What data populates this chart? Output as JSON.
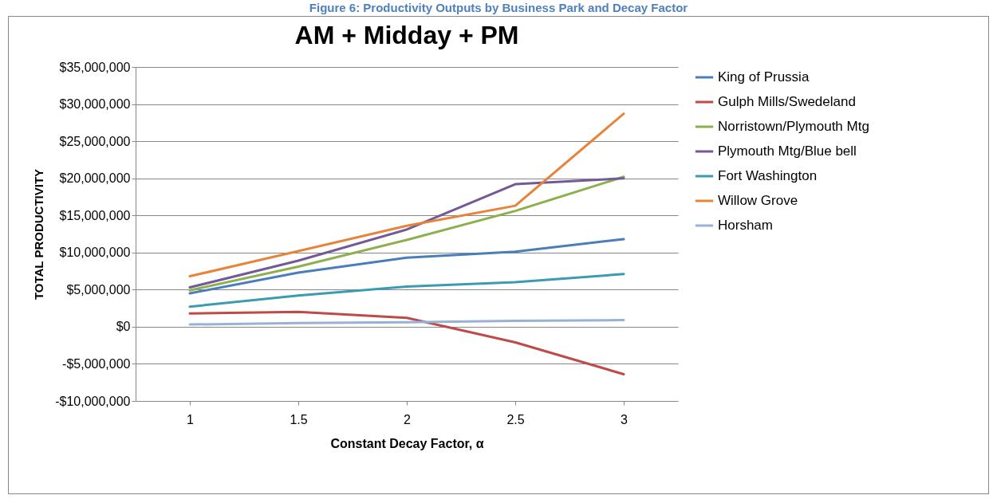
{
  "chart_data": {
    "type": "line",
    "title": "AM + Midday + PM",
    "xlabel": "Constant Decay Factor, α",
    "ylabel": "TOTAL PRODUCTIVITY",
    "annotations": [
      "Figure 6: Productivity Outputs by Business Park and Decay Factor"
    ],
    "x": [
      1,
      1.5,
      2,
      2.5,
      3
    ],
    "xlim": [
      0.75,
      3.25
    ],
    "xticks": [
      1,
      1.5,
      2,
      2.5,
      3
    ],
    "ylim": [
      -10000000,
      35000000
    ],
    "yticks": [
      {
        "value": -10000000,
        "label": "-$10,000,000"
      },
      {
        "value": -5000000,
        "label": "-$5,000,000"
      },
      {
        "value": 0,
        "label": "$0"
      },
      {
        "value": 5000000,
        "label": "$5,000,000"
      },
      {
        "value": 10000000,
        "label": "$10,000,000"
      },
      {
        "value": 15000000,
        "label": "$15,000,000"
      },
      {
        "value": 20000000,
        "label": "$20,000,000"
      },
      {
        "value": 25000000,
        "label": "$25,000,000"
      },
      {
        "value": 30000000,
        "label": "$30,000,000"
      },
      {
        "value": 35000000,
        "label": "$35,000,000"
      }
    ],
    "grid": "y",
    "legend": "right",
    "marker": "none",
    "series": [
      {
        "name": "King of Prussia",
        "color": "#4a7ebb",
        "values": [
          4500000,
          7300000,
          9300000,
          10100000,
          11800000
        ]
      },
      {
        "name": "Gulph Mills/Swedeland",
        "color": "#be4b48",
        "values": [
          1800000,
          2000000,
          1200000,
          -2100000,
          -6400000
        ]
      },
      {
        "name": "Norristown/Plymouth Mtg",
        "color": "#8cb04e",
        "values": [
          4900000,
          8100000,
          11700000,
          15600000,
          20200000
        ]
      },
      {
        "name": "Plymouth Mtg/Blue bell",
        "color": "#735a96",
        "values": [
          5300000,
          8900000,
          13100000,
          19200000,
          20000000
        ]
      },
      {
        "name": "Fort Washington",
        "color": "#3a9bb2",
        "values": [
          2700000,
          4200000,
          5400000,
          6000000,
          7100000
        ]
      },
      {
        "name": "Willow Grove",
        "color": "#e8843a",
        "values": [
          6800000,
          10200000,
          13600000,
          16300000,
          28700000
        ]
      },
      {
        "name": "Horsham",
        "color": "#95b3d7",
        "values": [
          300000,
          500000,
          600000,
          800000,
          900000
        ]
      }
    ]
  }
}
